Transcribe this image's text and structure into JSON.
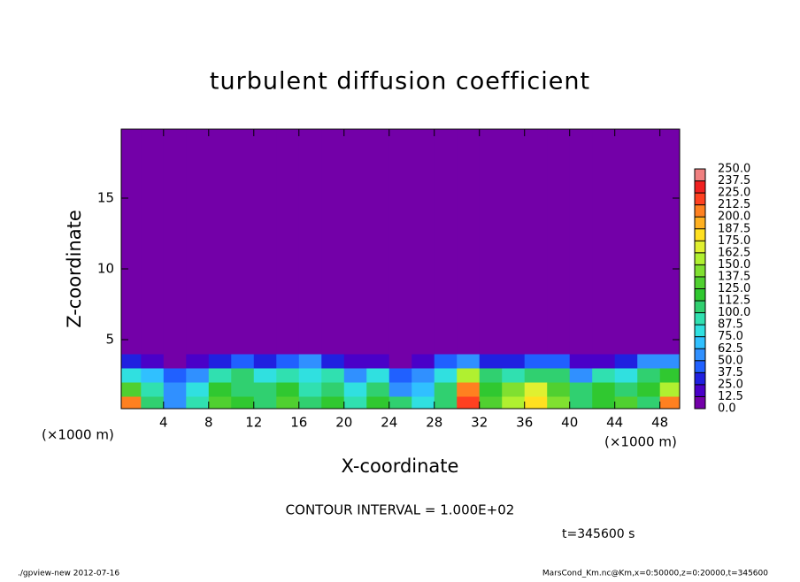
{
  "chart_data": {
    "type": "contour",
    "title": "turbulent diffusion coefficient",
    "x_label": "X-coordinate",
    "y_label": "Z-coordinate",
    "x_unit": "(×1000 m)",
    "x_unit_right": "(×1000 m)",
    "contour_note": "CONTOUR INTERVAL = 1.000E+02",
    "time_note": "t=345600 s",
    "footer_left": "./gpview-new  2012-07-16",
    "footer_right": "MarsCond_Km.nc@Km,x=0:50000,z=0:20000,t=345600",
    "xlim": [
      0.25,
      49.75
    ],
    "ylim": [
      0.125,
      19.875
    ],
    "xticks": [
      4,
      8,
      12,
      16,
      20,
      24,
      28,
      32,
      36,
      40,
      44,
      48
    ],
    "yticks": [
      5,
      10,
      15
    ],
    "x_edges": [
      0.25,
      2,
      4,
      6,
      8,
      10,
      12,
      14,
      16,
      18,
      20,
      22,
      24,
      26,
      28,
      30,
      32,
      34,
      36,
      38,
      40,
      42,
      44,
      46,
      48,
      49.75
    ],
    "z_edges": [
      0.125,
      1,
      2,
      3,
      4,
      19.875
    ],
    "values": [
      [
        200,
        110,
        60,
        90,
        130,
        120,
        110,
        130,
        100,
        120,
        90,
        120,
        100,
        80,
        110,
        220,
        130,
        150,
        180,
        140,
        100,
        120,
        130,
        110,
        210
      ],
      [
        130,
        90,
        50,
        80,
        120,
        110,
        100,
        120,
        90,
        100,
        80,
        110,
        60,
        70,
        100,
        200,
        120,
        140,
        170,
        130,
        100,
        120,
        110,
        120,
        150
      ],
      [
        80,
        70,
        40,
        60,
        90,
        100,
        80,
        90,
        80,
        90,
        60,
        80,
        40,
        50,
        80,
        150,
        100,
        90,
        100,
        100,
        60,
        90,
        80,
        100,
        120
      ],
      [
        30,
        20,
        10,
        20,
        30,
        40,
        30,
        40,
        50,
        30,
        20,
        20,
        10,
        20,
        40,
        60,
        30,
        30,
        40,
        40,
        20,
        20,
        30,
        50,
        50
      ],
      [
        0,
        0,
        0,
        0,
        0,
        0,
        0,
        0,
        0,
        0,
        0,
        0,
        0,
        0,
        0,
        0,
        0,
        0,
        0,
        0,
        0,
        0,
        0,
        0,
        0
      ]
    ],
    "levels": [
      {
        "value": 0,
        "label": "0.0"
      },
      {
        "value": 12.5,
        "label": "12.5"
      },
      {
        "value": 25,
        "label": "25.0"
      },
      {
        "value": 37.5,
        "label": "37.5"
      },
      {
        "value": 50,
        "label": "50.0"
      },
      {
        "value": 62.5,
        "label": "62.5"
      },
      {
        "value": 75,
        "label": "75.0"
      },
      {
        "value": 87.5,
        "label": "87.5"
      },
      {
        "value": 100,
        "label": "100.0"
      },
      {
        "value": 112.5,
        "label": "112.5"
      },
      {
        "value": 125,
        "label": "125.0"
      },
      {
        "value": 137.5,
        "label": "137.5"
      },
      {
        "value": 150,
        "label": "150.0"
      },
      {
        "value": 162.5,
        "label": "162.5"
      },
      {
        "value": 175,
        "label": "175.0"
      },
      {
        "value": 187.5,
        "label": "187.5"
      },
      {
        "value": 200,
        "label": "200.0"
      },
      {
        "value": 212.5,
        "label": "212.5"
      },
      {
        "value": 225,
        "label": "225.0"
      },
      {
        "value": 237.5,
        "label": "237.5"
      },
      {
        "value": 250,
        "label": "250.0"
      }
    ],
    "colors": [
      "#7300a8",
      "#4a00c8",
      "#2020e0",
      "#2060ff",
      "#3090ff",
      "#30c0ff",
      "#30e0e0",
      "#30e0b0",
      "#30d070",
      "#30c830",
      "#50d030",
      "#80e030",
      "#b0f030",
      "#e0f030",
      "#ffe020",
      "#ffb020",
      "#ff8020",
      "#ff4020",
      "#f02020",
      "#f08080"
    ]
  }
}
